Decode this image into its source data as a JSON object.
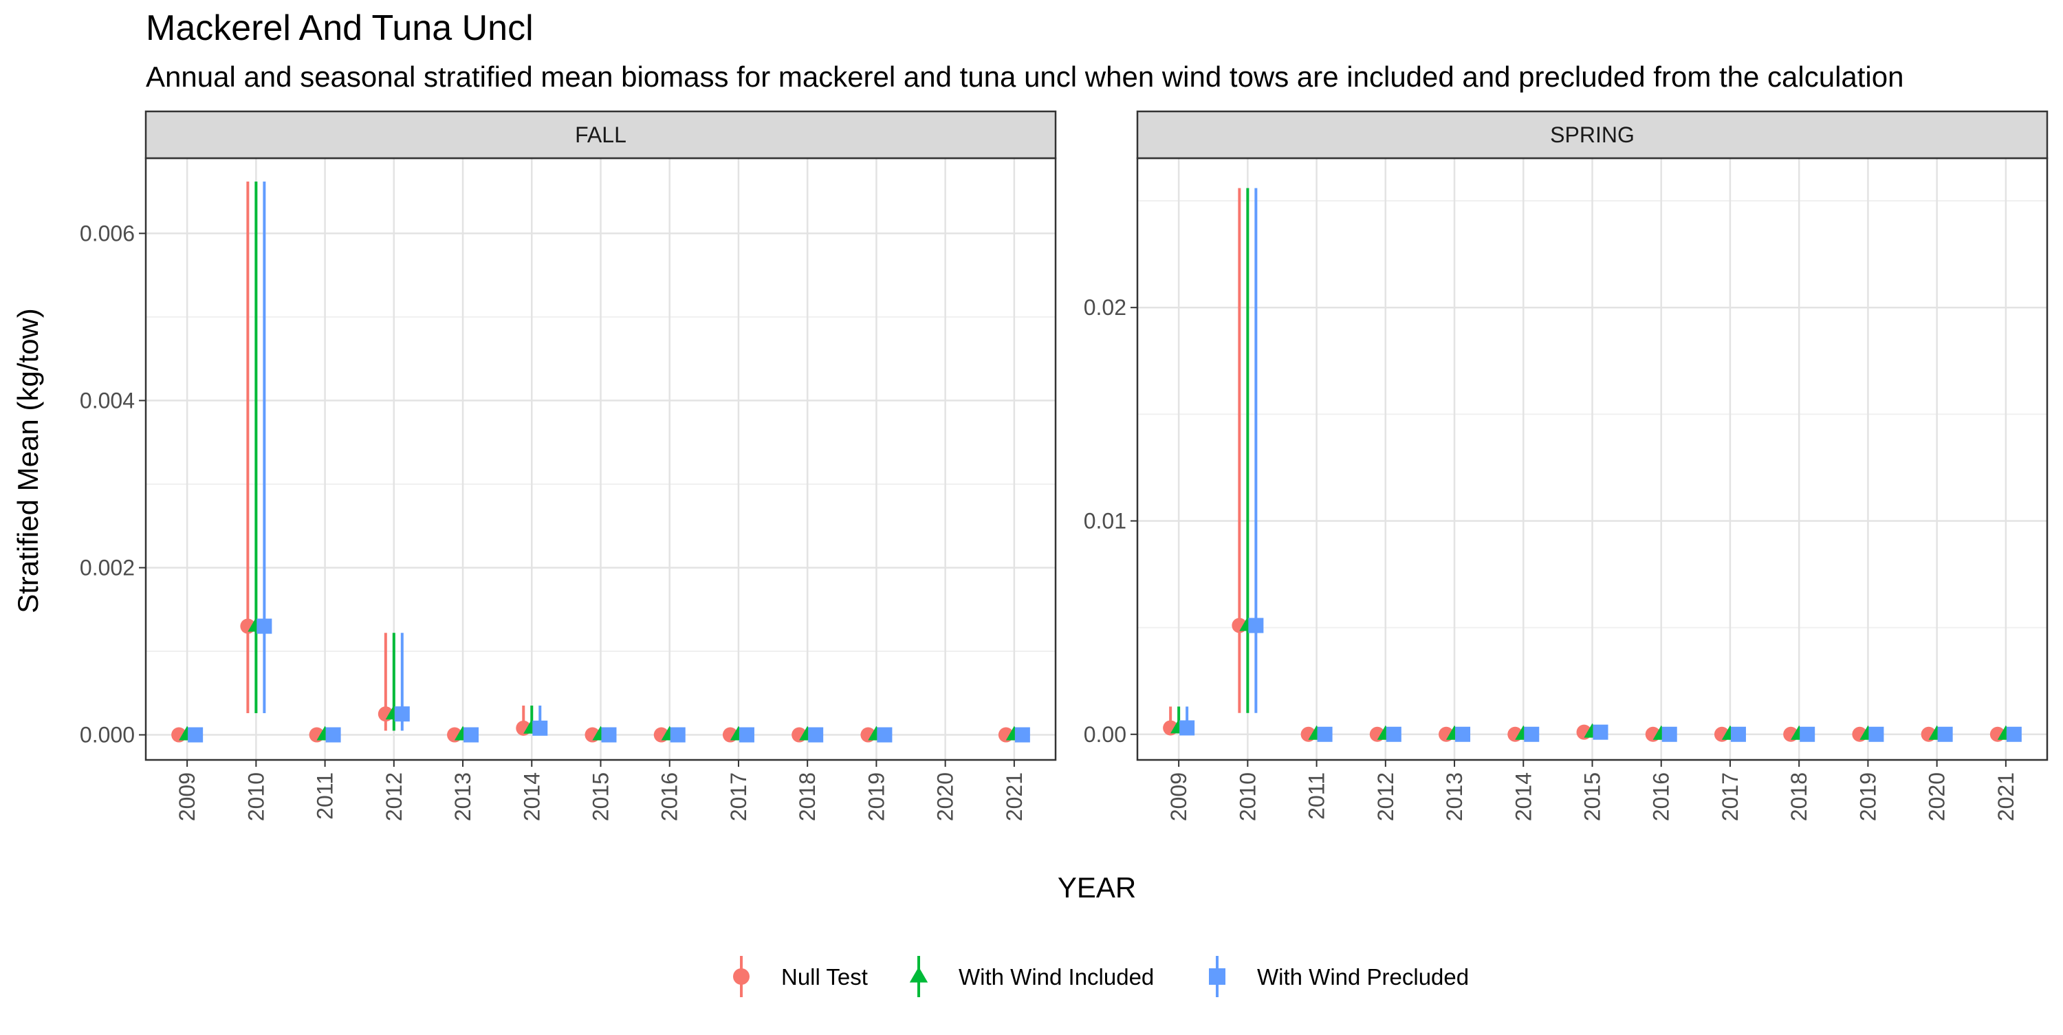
{
  "chart_data": {
    "type": "scatter",
    "title": "Mackerel And Tuna Uncl",
    "subtitle": "Annual and seasonal stratified mean biomass for mackerel and tuna uncl when wind tows are included and precluded from the calculation",
    "xlabel": "YEAR",
    "ylabel": "Stratified Mean (kg/tow)",
    "x": [
      2009,
      2010,
      2011,
      2012,
      2013,
      2014,
      2015,
      2016,
      2017,
      2018,
      2019,
      2020,
      2021
    ],
    "grid": true,
    "legend_position": "bottom",
    "legend": [
      {
        "name": "Null Test",
        "color": "#F8766D",
        "shape": "circle"
      },
      {
        "name": "With Wind Included",
        "color": "#00BA38",
        "shape": "triangle"
      },
      {
        "name": "With Wind Precluded",
        "color": "#619CFF",
        "shape": "square"
      }
    ],
    "panels": [
      {
        "label": "FALL",
        "ylim": [
          -0.0003,
          0.0069
        ],
        "yticks": [
          0.0,
          0.002,
          0.004,
          0.006
        ],
        "ytick_labels": [
          "0.000",
          "0.002",
          "0.004",
          "0.006"
        ],
        "series": [
          {
            "name": "Null Test",
            "points": [
              {
                "x": 2009,
                "y": 0.0,
                "lo": 0.0,
                "hi": 0.0
              },
              {
                "x": 2010,
                "y": 0.0013,
                "lo": 0.00026,
                "hi": 0.00662
              },
              {
                "x": 2011,
                "y": 0.0,
                "lo": 0.0,
                "hi": 0.0
              },
              {
                "x": 2012,
                "y": 0.00025,
                "lo": 5e-05,
                "hi": 0.00122
              },
              {
                "x": 2013,
                "y": 0.0,
                "lo": 0.0,
                "hi": 0.0
              },
              {
                "x": 2014,
                "y": 8e-05,
                "lo": 2e-05,
                "hi": 0.00035
              },
              {
                "x": 2015,
                "y": 0.0,
                "lo": 0.0,
                "hi": 0.0
              },
              {
                "x": 2016,
                "y": 0.0,
                "lo": 0.0,
                "hi": 0.0
              },
              {
                "x": 2017,
                "y": 0.0,
                "lo": 0.0,
                "hi": 0.0
              },
              {
                "x": 2018,
                "y": 0.0,
                "lo": 0.0,
                "hi": 0.0
              },
              {
                "x": 2019,
                "y": 0.0,
                "lo": 0.0,
                "hi": 0.0
              },
              {
                "x": 2021,
                "y": 0.0,
                "lo": 0.0,
                "hi": 0.0
              }
            ]
          },
          {
            "name": "With Wind Included",
            "points": [
              {
                "x": 2009,
                "y": 0.0,
                "lo": 0.0,
                "hi": 0.0
              },
              {
                "x": 2010,
                "y": 0.0013,
                "lo": 0.00026,
                "hi": 0.00662
              },
              {
                "x": 2011,
                "y": 0.0,
                "lo": 0.0,
                "hi": 0.0
              },
              {
                "x": 2012,
                "y": 0.00025,
                "lo": 5e-05,
                "hi": 0.00122
              },
              {
                "x": 2013,
                "y": 0.0,
                "lo": 0.0,
                "hi": 0.0
              },
              {
                "x": 2014,
                "y": 8e-05,
                "lo": 2e-05,
                "hi": 0.00035
              },
              {
                "x": 2015,
                "y": 0.0,
                "lo": 0.0,
                "hi": 0.0
              },
              {
                "x": 2016,
                "y": 0.0,
                "lo": 0.0,
                "hi": 0.0
              },
              {
                "x": 2017,
                "y": 0.0,
                "lo": 0.0,
                "hi": 0.0
              },
              {
                "x": 2018,
                "y": 0.0,
                "lo": 0.0,
                "hi": 0.0
              },
              {
                "x": 2019,
                "y": 0.0,
                "lo": 0.0,
                "hi": 0.0
              },
              {
                "x": 2021,
                "y": 0.0,
                "lo": 0.0,
                "hi": 0.0
              }
            ]
          },
          {
            "name": "With Wind Precluded",
            "points": [
              {
                "x": 2009,
                "y": 0.0,
                "lo": 0.0,
                "hi": 0.0
              },
              {
                "x": 2010,
                "y": 0.0013,
                "lo": 0.00026,
                "hi": 0.00662
              },
              {
                "x": 2011,
                "y": 0.0,
                "lo": 0.0,
                "hi": 0.0
              },
              {
                "x": 2012,
                "y": 0.00025,
                "lo": 5e-05,
                "hi": 0.00122
              },
              {
                "x": 2013,
                "y": 0.0,
                "lo": 0.0,
                "hi": 0.0
              },
              {
                "x": 2014,
                "y": 8e-05,
                "lo": 2e-05,
                "hi": 0.00035
              },
              {
                "x": 2015,
                "y": 0.0,
                "lo": 0.0,
                "hi": 0.0
              },
              {
                "x": 2016,
                "y": 0.0,
                "lo": 0.0,
                "hi": 0.0
              },
              {
                "x": 2017,
                "y": 0.0,
                "lo": 0.0,
                "hi": 0.0
              },
              {
                "x": 2018,
                "y": 0.0,
                "lo": 0.0,
                "hi": 0.0
              },
              {
                "x": 2019,
                "y": 0.0,
                "lo": 0.0,
                "hi": 0.0
              },
              {
                "x": 2021,
                "y": 0.0,
                "lo": 0.0,
                "hi": 0.0
              }
            ]
          }
        ]
      },
      {
        "label": "SPRING",
        "ylim": [
          -0.0012,
          0.027
        ],
        "yticks": [
          0.0,
          0.01,
          0.02
        ],
        "ytick_labels": [
          "0.00",
          "0.01",
          "0.02"
        ],
        "series": [
          {
            "name": "Null Test",
            "points": [
              {
                "x": 2009,
                "y": 0.0003,
                "lo": 5e-05,
                "hi": 0.0013
              },
              {
                "x": 2010,
                "y": 0.0051,
                "lo": 0.001,
                "hi": 0.0256
              },
              {
                "x": 2011,
                "y": 0.0,
                "lo": 0.0,
                "hi": 0.0
              },
              {
                "x": 2012,
                "y": 0.0,
                "lo": 0.0,
                "hi": 0.0
              },
              {
                "x": 2013,
                "y": 0.0,
                "lo": 0.0,
                "hi": 0.0
              },
              {
                "x": 2014,
                "y": 0.0,
                "lo": 0.0,
                "hi": 0.0
              },
              {
                "x": 2015,
                "y": 0.0001,
                "lo": 0.0,
                "hi": 0.0001
              },
              {
                "x": 2016,
                "y": 0.0,
                "lo": 0.0,
                "hi": 0.0
              },
              {
                "x": 2017,
                "y": 0.0,
                "lo": 0.0,
                "hi": 0.0
              },
              {
                "x": 2018,
                "y": 0.0,
                "lo": 0.0,
                "hi": 0.0
              },
              {
                "x": 2019,
                "y": 0.0,
                "lo": 0.0,
                "hi": 0.0
              },
              {
                "x": 2020,
                "y": 0.0,
                "lo": 0.0,
                "hi": 0.0
              },
              {
                "x": 2021,
                "y": 0.0,
                "lo": 0.0,
                "hi": 0.0
              }
            ]
          },
          {
            "name": "With Wind Included",
            "points": [
              {
                "x": 2009,
                "y": 0.0003,
                "lo": 5e-05,
                "hi": 0.0013
              },
              {
                "x": 2010,
                "y": 0.0051,
                "lo": 0.001,
                "hi": 0.0256
              },
              {
                "x": 2011,
                "y": 0.0,
                "lo": 0.0,
                "hi": 0.0
              },
              {
                "x": 2012,
                "y": 0.0,
                "lo": 0.0,
                "hi": 0.0
              },
              {
                "x": 2013,
                "y": 0.0,
                "lo": 0.0,
                "hi": 0.0
              },
              {
                "x": 2014,
                "y": 0.0,
                "lo": 0.0,
                "hi": 0.0
              },
              {
                "x": 2015,
                "y": 0.0001,
                "lo": 0.0,
                "hi": 0.0001
              },
              {
                "x": 2016,
                "y": 0.0,
                "lo": 0.0,
                "hi": 0.0
              },
              {
                "x": 2017,
                "y": 0.0,
                "lo": 0.0,
                "hi": 0.0
              },
              {
                "x": 2018,
                "y": 0.0,
                "lo": 0.0,
                "hi": 0.0
              },
              {
                "x": 2019,
                "y": 0.0,
                "lo": 0.0,
                "hi": 0.0
              },
              {
                "x": 2020,
                "y": 0.0,
                "lo": 0.0,
                "hi": 0.0
              },
              {
                "x": 2021,
                "y": 0.0,
                "lo": 0.0,
                "hi": 0.0
              }
            ]
          },
          {
            "name": "With Wind Precluded",
            "points": [
              {
                "x": 2009,
                "y": 0.0003,
                "lo": 5e-05,
                "hi": 0.0013
              },
              {
                "x": 2010,
                "y": 0.0051,
                "lo": 0.001,
                "hi": 0.0256
              },
              {
                "x": 2011,
                "y": 0.0,
                "lo": 0.0,
                "hi": 0.0
              },
              {
                "x": 2012,
                "y": 0.0,
                "lo": 0.0,
                "hi": 0.0
              },
              {
                "x": 2013,
                "y": 0.0,
                "lo": 0.0,
                "hi": 0.0
              },
              {
                "x": 2014,
                "y": 0.0,
                "lo": 0.0,
                "hi": 0.0
              },
              {
                "x": 2015,
                "y": 0.0001,
                "lo": 0.0,
                "hi": 0.0001
              },
              {
                "x": 2016,
                "y": 0.0,
                "lo": 0.0,
                "hi": 0.0
              },
              {
                "x": 2017,
                "y": 0.0,
                "lo": 0.0,
                "hi": 0.0
              },
              {
                "x": 2018,
                "y": 0.0,
                "lo": 0.0,
                "hi": 0.0
              },
              {
                "x": 2019,
                "y": 0.0,
                "lo": 0.0,
                "hi": 0.0
              },
              {
                "x": 2020,
                "y": 0.0,
                "lo": 0.0,
                "hi": 0.0
              },
              {
                "x": 2021,
                "y": 0.0,
                "lo": 0.0,
                "hi": 0.0
              }
            ]
          }
        ]
      }
    ]
  }
}
